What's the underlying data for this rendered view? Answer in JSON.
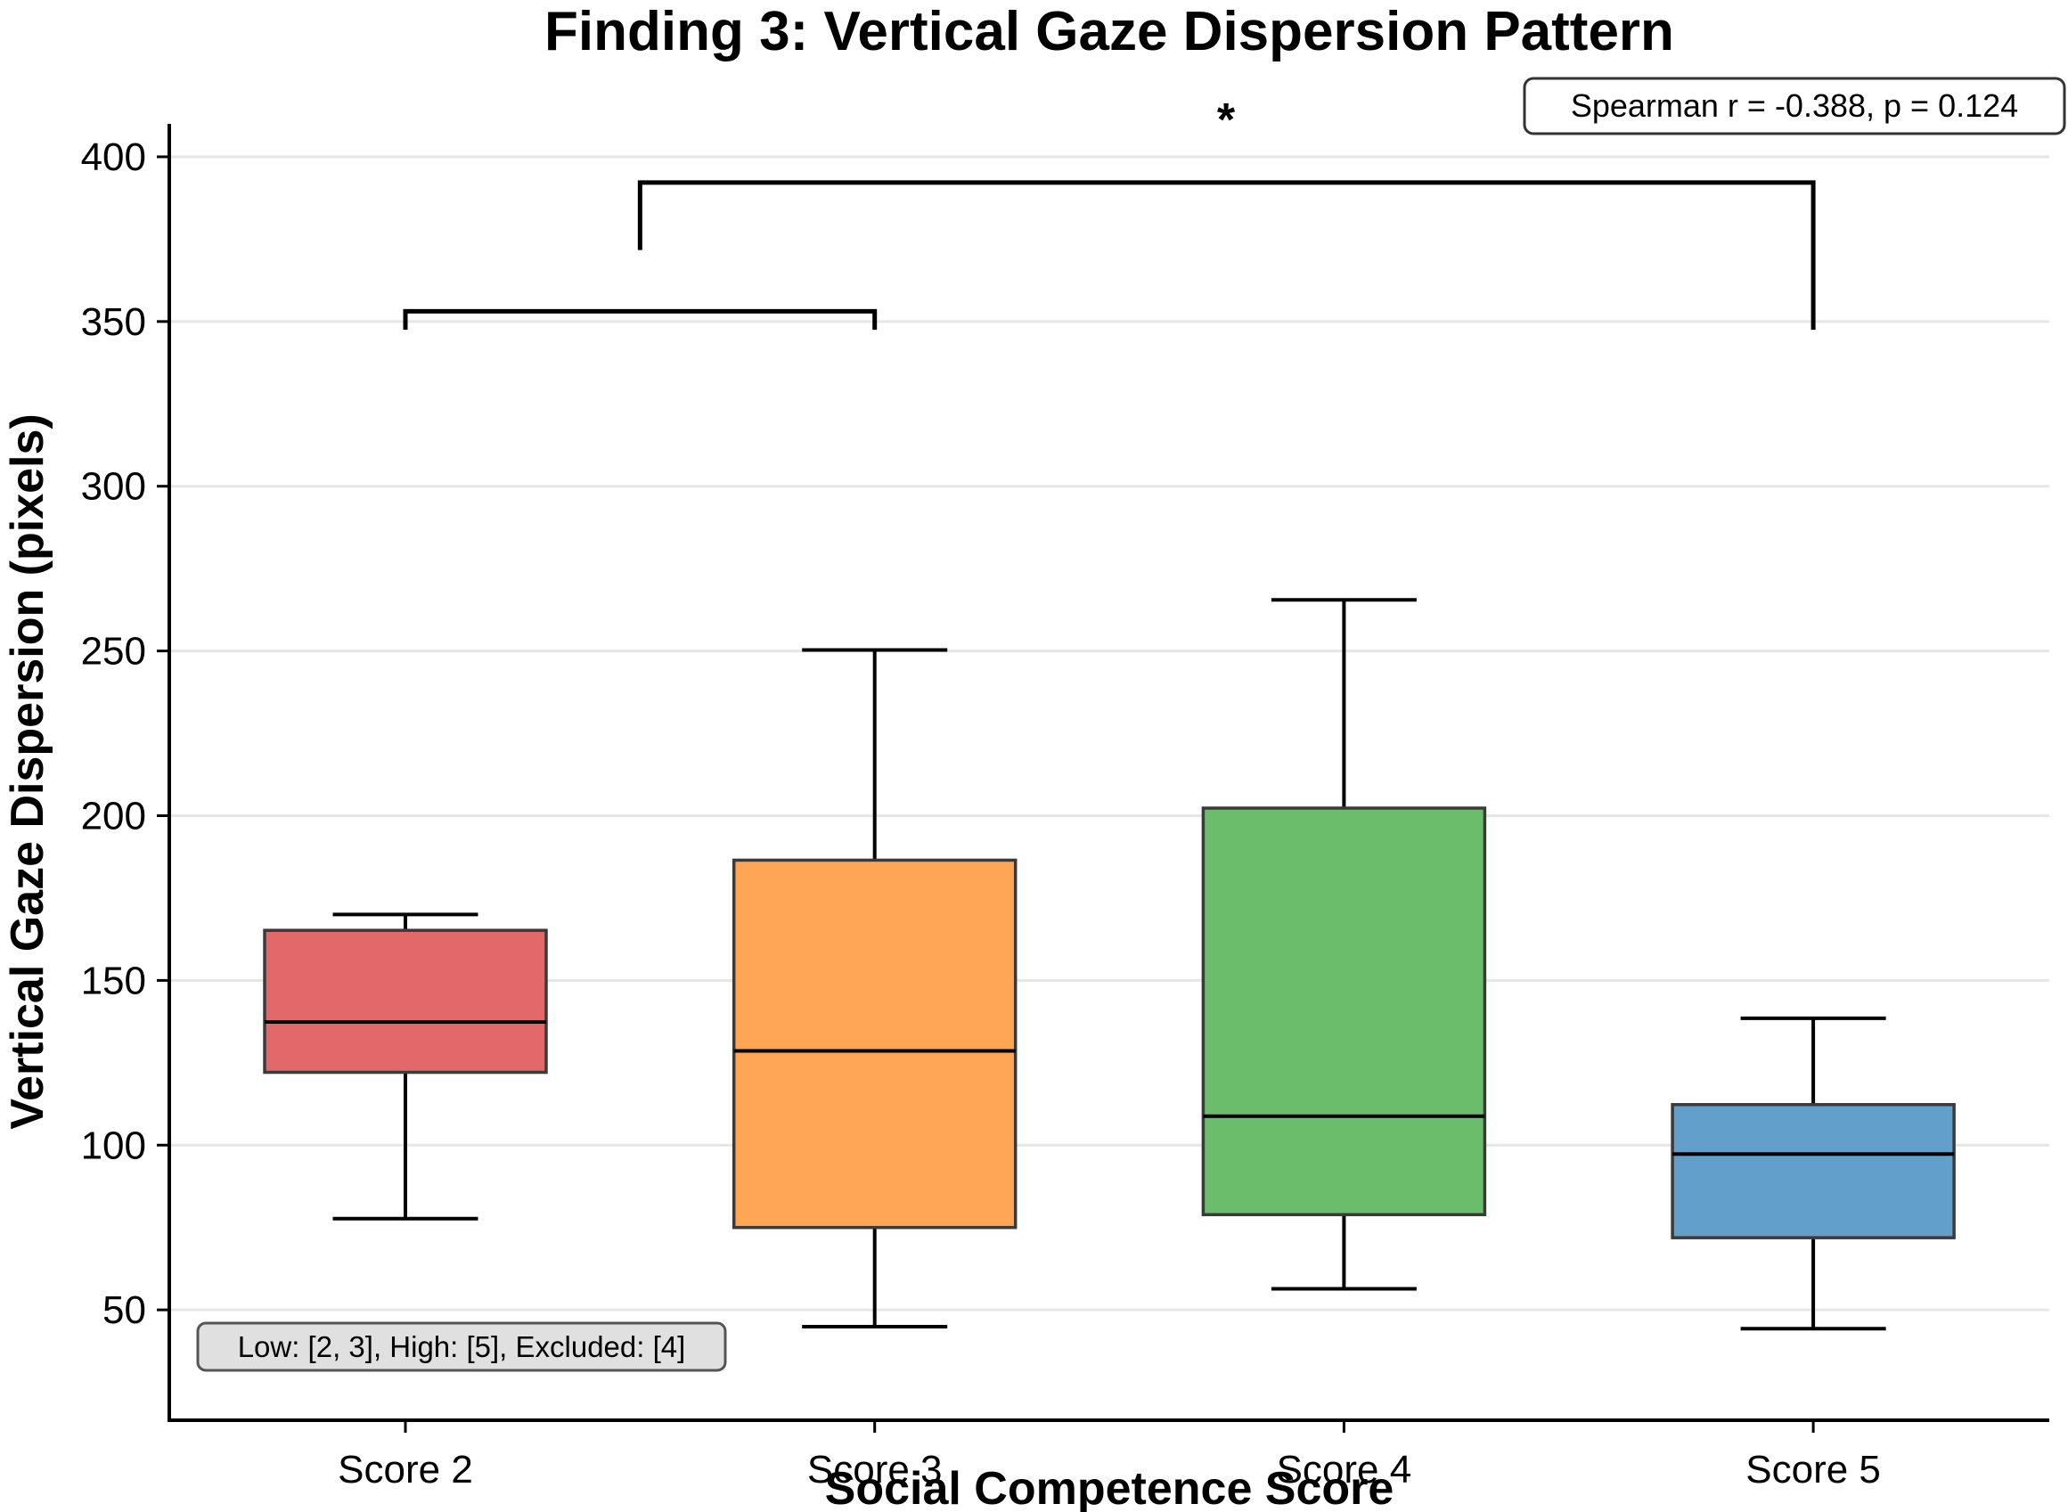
{
  "chart_data": {
    "type": "box",
    "title": "Finding 3: Vertical Gaze Dispersion Pattern",
    "xlabel": "Social Competence Score",
    "ylabel": "Vertical Gaze Dispersion (pixels)",
    "ylim": [
      16.5,
      410
    ],
    "yticks": [
      50,
      100,
      150,
      200,
      250,
      300,
      350,
      400
    ],
    "grid": "y",
    "categories": [
      "Score 2",
      "Score 3",
      "Score 4",
      "Score 5"
    ],
    "boxes": [
      {
        "category": "Score 2",
        "whisker_low": 77.7,
        "q1": 122.1,
        "median": 137.4,
        "q3": 165.2,
        "whisker_high": 170.0,
        "color": "#d62728"
      },
      {
        "category": "Score 3",
        "whisker_low": 44.9,
        "q1": 75.0,
        "median": 128.6,
        "q3": 186.5,
        "whisker_high": 250.3,
        "color": "#ff7f0e"
      },
      {
        "category": "Score 4",
        "whisker_low": 56.4,
        "q1": 78.9,
        "median": 108.8,
        "q3": 202.3,
        "whisker_high": 265.5,
        "color": "#2ca02c"
      },
      {
        "category": "Score 5",
        "whisker_low": 44.3,
        "q1": 71.9,
        "median": 97.3,
        "q3": 112.3,
        "whisker_high": 138.5,
        "color": "#1f77b4"
      }
    ],
    "significance_brackets": [
      {
        "from": "Score 2",
        "to": "Score 3",
        "top": 353.1,
        "left_leg_bottom": 347.5,
        "right_leg_bottom": 347.5,
        "label": ""
      },
      {
        "from": "Low (Score 2-3 midpoint)",
        "to": "Score 5",
        "top": 392.2,
        "left_leg_bottom": 371.7,
        "right_leg_bottom": 347.5,
        "label": "*"
      }
    ],
    "annotations": {
      "stats": "Spearman r = -0.388, p = 0.124",
      "groups": "Low: [2, 3], High: [5], Excluded: [4]",
      "significance_marker": "*"
    },
    "legend": "none"
  }
}
